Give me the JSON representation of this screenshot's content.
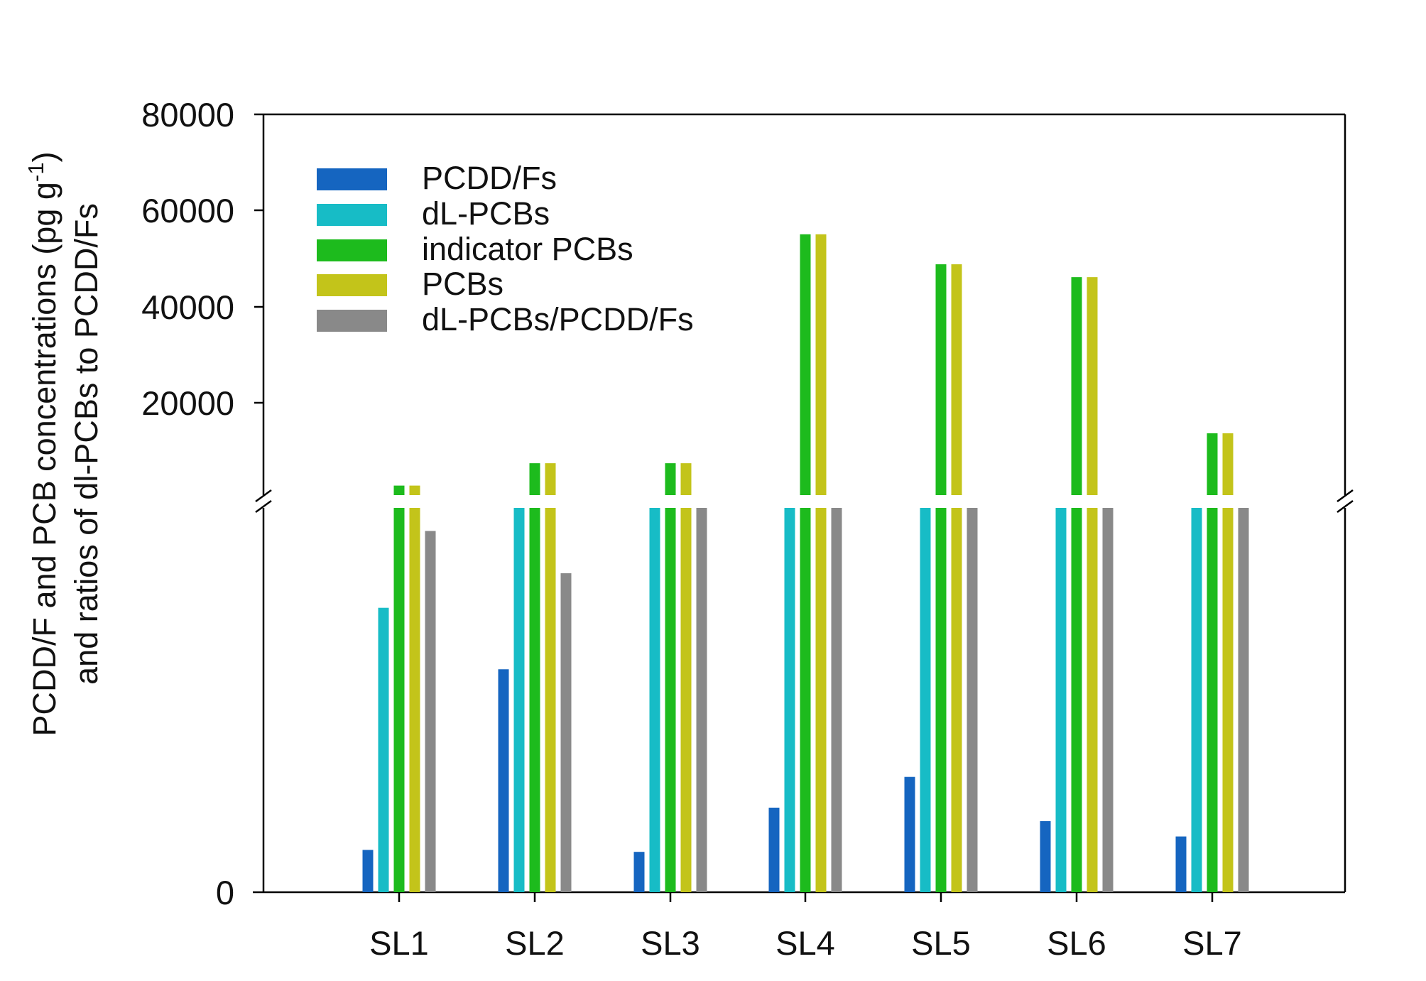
{
  "chart_data": {
    "type": "bar",
    "categories": [
      "SL1",
      "SL2",
      "SL3",
      "SL4",
      "SL5",
      "SL6",
      "SL7"
    ],
    "ylabel_line1": "PCDD/F and PCB concentrations (pg g",
    "ylabel_superscript": "-1",
    "ylabel_line1_end": ")",
    "ylabel_line2": "and ratios of dl-PCBs to PCDD/Fs",
    "y_ticks_upper": [
      "80000",
      "60000",
      "40000",
      "20000"
    ],
    "y_tick_lower": "0",
    "y_axis_break": true,
    "upper_segment_ylim": [
      0,
      80000
    ],
    "lower_segment_relative_scale": [
      0,
      1
    ],
    "series": [
      {
        "name": "PCDD/Fs",
        "color": "#1565c0",
        "relative_lower_values": [
          0.11,
          0.58,
          0.105,
          0.22,
          0.3,
          0.185,
          0.145
        ],
        "upper_values": [
          null,
          null,
          null,
          null,
          null,
          null,
          null
        ]
      },
      {
        "name": "dL-PCBs",
        "color": "#17bcc6",
        "relative_lower_values": [
          0.74,
          1,
          1,
          1,
          1,
          1,
          1
        ],
        "upper_values": [
          null,
          null,
          null,
          null,
          null,
          null,
          null
        ]
      },
      {
        "name": "indicator PCBs",
        "color": "#1dbb1d",
        "relative_lower_values": [
          1,
          1,
          1,
          1,
          1,
          1,
          1
        ],
        "upper_values": [
          2000,
          6700,
          6700,
          54800,
          48500,
          45800,
          13000
        ]
      },
      {
        "name": "PCBs",
        "color": "#c3c41a",
        "relative_lower_values": [
          1,
          1,
          1,
          1,
          1,
          1,
          1
        ],
        "upper_values": [
          2000,
          6700,
          6700,
          54800,
          48500,
          45800,
          13000
        ]
      },
      {
        "name": "dL-PCBs/PCDD/Fs",
        "color": "#898989",
        "relative_lower_values": [
          0.94,
          0.83,
          1,
          1,
          1,
          1,
          1
        ],
        "upper_values": [
          null,
          null,
          null,
          null,
          null,
          null,
          null
        ]
      }
    ],
    "legend_position": "top-left",
    "grid": false
  }
}
